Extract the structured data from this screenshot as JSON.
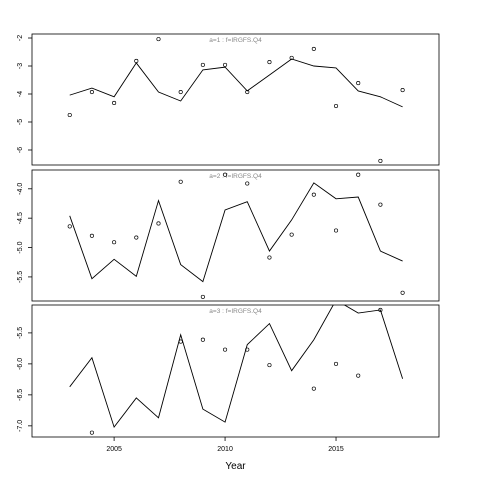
{
  "chart_data": [
    {
      "type": "line",
      "title": "a=1  :  f=IRGFS.Q4",
      "x": [
        2003,
        2004,
        2005,
        2006,
        2007,
        2008,
        2009,
        2010,
        2011,
        2012,
        2013,
        2014,
        2015,
        2016,
        2017,
        2018
      ],
      "series": [
        {
          "style": "line",
          "color": "#000000",
          "values": [
            -4.04,
            -3.79,
            -4.1,
            -2.89,
            -3.93,
            -4.25,
            -3.14,
            -3.04,
            -3.89,
            -3.32,
            -2.75,
            -3.0,
            -3.07,
            -3.89,
            -4.1,
            -4.46
          ]
        },
        {
          "style": "points",
          "color": "#000000",
          "values": [
            -4.75,
            -3.93,
            -4.32,
            -2.82,
            -2.04,
            -3.93,
            -2.96,
            -2.96,
            -3.93,
            -2.86,
            -2.71,
            -2.39,
            -4.43,
            -3.61,
            -6.39,
            -3.86
          ]
        }
      ],
      "xlim": [
        2001.3,
        2019.64
      ],
      "ylim": [
        -6.536,
        -1.857
      ],
      "yticks": [
        -2,
        -3,
        -4,
        -5,
        -6
      ]
    },
    {
      "type": "line",
      "title": "a=2  :  f=IRGFS.Q4",
      "x": [
        2003,
        2004,
        2005,
        2006,
        2007,
        2008,
        2009,
        2010,
        2011,
        2012,
        2013,
        2014,
        2015,
        2016,
        2017,
        2018
      ],
      "series": [
        {
          "style": "line",
          "color": "#000000",
          "values": [
            -4.46,
            -5.53,
            -5.2,
            -5.49,
            -4.2,
            -5.29,
            -5.58,
            -4.36,
            -4.22,
            -5.06,
            -4.53,
            -3.9,
            -4.17,
            -4.14,
            -5.06,
            -5.23
          ]
        },
        {
          "style": "points",
          "color": "#000000",
          "values": [
            -4.64,
            -4.8,
            -4.91,
            -4.83,
            -4.59,
            -3.88,
            -5.84,
            -3.76,
            -3.91,
            -5.17,
            -4.78,
            -4.1,
            -4.71,
            -3.76,
            -4.27,
            -5.77
          ]
        }
      ],
      "xlim": [
        2001.3,
        2019.64
      ],
      "ylim": [
        -5.91,
        -3.68
      ],
      "yticks": [
        {
          "value": -4,
          "label": "-4.0"
        },
        -4.5,
        {
          "value": -5,
          "label": "-5.0"
        },
        -5.5
      ]
    },
    {
      "type": "line",
      "title": "a=3  :  f=IRGFS.Q4",
      "x": [
        2003,
        2004,
        2005,
        2006,
        2007,
        2008,
        2009,
        2010,
        2011,
        2012,
        2013,
        2014,
        2015,
        2016,
        2017,
        2018
      ],
      "series": [
        {
          "style": "line",
          "color": "#000000",
          "values": [
            -6.37,
            -5.9,
            -7.02,
            -6.55,
            -6.87,
            -5.53,
            -6.73,
            -6.94,
            -5.69,
            -5.35,
            -6.11,
            -5.61,
            -4.97,
            -5.18,
            -5.13,
            -6.24
          ]
        },
        {
          "style": "points",
          "color": "#000000",
          "values": [
            null,
            -7.11,
            null,
            null,
            null,
            -5.64,
            -5.61,
            -5.77,
            -5.77,
            -6.02,
            null,
            -6.4,
            -6.0,
            -6.19,
            -5.13,
            null
          ]
        }
      ],
      "xlim": [
        2001.3,
        2019.64
      ],
      "ylim": [
        -7.18,
        -5.05
      ],
      "yticks": [
        -5.5,
        {
          "value": -6,
          "label": "-6.0"
        },
        -6.5,
        {
          "value": -7,
          "label": "-7.0"
        }
      ],
      "xticks": [
        2005,
        2010,
        2015
      ],
      "xlabel": "Year"
    }
  ]
}
